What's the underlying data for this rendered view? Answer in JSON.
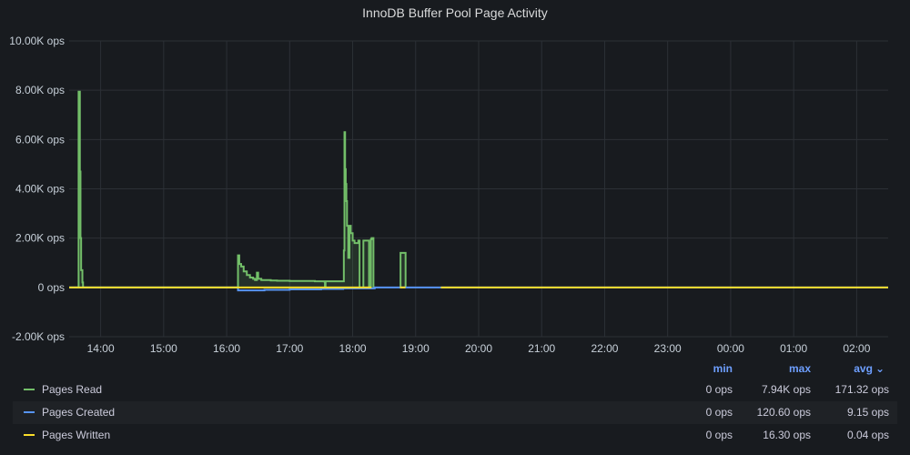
{
  "panel": {
    "title": "InnoDB Buffer Pool Page Activity"
  },
  "chart_data": {
    "type": "line",
    "title": "InnoDB Buffer Pool Page Activity",
    "y_ticks": [
      "10.00K ops",
      "8.00K ops",
      "6.00K ops",
      "4.00K ops",
      "2.00K ops",
      "0 ops",
      "-2.00K ops"
    ],
    "y_tick_values": [
      10000,
      8000,
      6000,
      4000,
      2000,
      0,
      -2000
    ],
    "ylim": [
      -2000,
      10000
    ],
    "x_ticks": [
      "14:00",
      "15:00",
      "16:00",
      "17:00",
      "18:00",
      "19:00",
      "20:00",
      "21:00",
      "22:00",
      "23:00",
      "00:00",
      "01:00",
      "02:00"
    ],
    "x_tick_hours": [
      14,
      15,
      16,
      17,
      18,
      19,
      20,
      21,
      22,
      23,
      24,
      25,
      26
    ],
    "xlim_hours": [
      13.5,
      26.5
    ],
    "grid": true,
    "legend_placement": "bottom",
    "series": [
      {
        "name": "Pages Read",
        "color": "#73bf69",
        "fill": true,
        "x": [
          13.5,
          13.64,
          13.65,
          13.67,
          13.68,
          13.69,
          13.71,
          13.72,
          13.75,
          16.17,
          16.18,
          16.2,
          16.23,
          16.27,
          16.32,
          16.37,
          16.42,
          16.45,
          16.48,
          16.5,
          16.55,
          16.6,
          16.7,
          16.8,
          17.0,
          17.2,
          17.4,
          17.55,
          17.56,
          17.57,
          17.58,
          17.85,
          17.86,
          17.87,
          17.88,
          17.89,
          17.9,
          17.91,
          17.93,
          17.95,
          17.97,
          18.0,
          18.03,
          18.06,
          18.09,
          18.1,
          18.11,
          18.12,
          18.13,
          18.17,
          18.18,
          18.25,
          18.26,
          18.27,
          18.28,
          18.29,
          18.3,
          18.32,
          18.33,
          18.34,
          18.35,
          18.75,
          18.76,
          18.83,
          18.84
        ],
        "y": [
          0,
          0,
          7940,
          4700,
          2000,
          700,
          200,
          0,
          0,
          0,
          1300,
          950,
          850,
          650,
          500,
          400,
          350,
          300,
          600,
          350,
          300,
          300,
          280,
          270,
          260,
          260,
          250,
          240,
          0,
          250,
          250,
          250,
          1500,
          6300,
          4800,
          4200,
          3500,
          2500,
          1200,
          2500,
          2200,
          1900,
          1800,
          1800,
          1900,
          1900,
          0,
          0,
          0,
          1900,
          1900,
          1900,
          0,
          0,
          0,
          1950,
          2000,
          2000,
          0,
          0,
          0,
          0,
          1400,
          1400,
          0
        ],
        "gaps_after_hours": [
          18.35,
          18.84
        ]
      },
      {
        "name": "Pages Created",
        "color": "#5794f2",
        "fill": false,
        "x": [
          13.5,
          16.17,
          16.18,
          16.6,
          17.0,
          17.5,
          17.85,
          18.35,
          18.75,
          18.84,
          19.4,
          26.5
        ],
        "y": [
          0,
          0,
          -120,
          -100,
          -80,
          -60,
          -40,
          0,
          0,
          0,
          0,
          0
        ]
      },
      {
        "name": "Pages Written",
        "color": "#fade2a",
        "fill": false,
        "x": [
          13.5,
          18.3,
          18.75,
          18.84,
          19.4,
          26.5
        ],
        "y": [
          0,
          0,
          0,
          0,
          0,
          0
        ],
        "segments": [
          [
            13.5,
            18.3
          ],
          [
            18.75,
            18.84
          ],
          [
            19.4,
            26.5
          ]
        ]
      }
    ]
  },
  "legend": {
    "headers": {
      "min": "min",
      "max": "max",
      "avg": "avg"
    },
    "rows": [
      {
        "name": "Pages Read",
        "color": "#73bf69",
        "min": "0 ops",
        "max": "7.94K ops",
        "avg": "171.32 ops"
      },
      {
        "name": "Pages Created",
        "color": "#5794f2",
        "min": "0 ops",
        "max": "120.60 ops",
        "avg": "9.15 ops"
      },
      {
        "name": "Pages Written",
        "color": "#fade2a",
        "min": "0 ops",
        "max": "16.30 ops",
        "avg": "0.04 ops"
      }
    ]
  }
}
